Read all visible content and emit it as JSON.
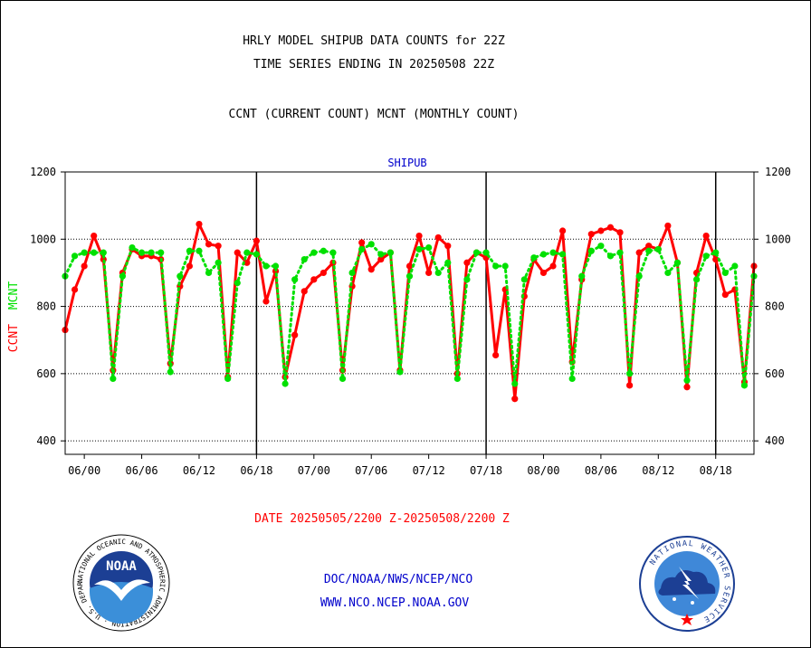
{
  "header": {
    "line1": "HRLY MODEL SHIPUB DATA COUNTS for 22Z",
    "line2": "TIME SERIES ENDING IN 20250508 22Z",
    "line3": "CCNT (CURRENT COUNT) MCNT (MONTHLY COUNT)"
  },
  "footer": {
    "date_range": "DATE 20250505/2200 Z-20250508/2200 Z",
    "org": "DOC/NOAA/NWS/NCEP/NCO",
    "url": "WWW.NCO.NCEP.NOAA.GOV"
  },
  "logos": {
    "noaa_text": "NOAA",
    "noaa_ring": "NATIONAL OCEANIC AND ATMOSPHERIC ADMINISTRATION · U.S. DEPARTMENT OF COMMERCE ·",
    "nws_ring": "NATIONAL WEATHER SERVICE"
  },
  "colors": {
    "ccnt": "#ff0000",
    "mcnt": "#00e000",
    "title": "#0000cc"
  },
  "chart_data": {
    "type": "line",
    "title": "SHIPUB",
    "ylabel_left": [
      "CCNT",
      "MCNT"
    ],
    "ylim": [
      360,
      1200
    ],
    "yticks": [
      400,
      600,
      800,
      1000,
      1200
    ],
    "xlim": [
      0,
      72
    ],
    "x_tick_labels": [
      "06/00",
      "06/06",
      "06/12",
      "06/18",
      "07/00",
      "07/06",
      "07/12",
      "07/18",
      "08/00",
      "08/06",
      "08/12",
      "08/18"
    ],
    "x_ticks": [
      2,
      8,
      14,
      20,
      26,
      32,
      38,
      44,
      50,
      56,
      62,
      68
    ],
    "day_boundaries": [
      20,
      44,
      68
    ],
    "grid": true,
    "series": [
      {
        "name": "CCNT",
        "x": [
          0,
          1,
          2,
          3,
          4,
          5,
          6,
          7,
          8,
          9,
          10,
          11,
          12,
          13,
          14,
          15,
          16,
          17,
          18,
          19,
          20,
          21,
          22,
          23,
          24,
          25,
          26,
          27,
          28,
          29,
          30,
          31,
          32,
          33,
          34,
          35,
          36,
          37,
          38,
          39,
          40,
          41,
          42,
          43,
          44,
          45,
          46,
          47,
          48,
          49,
          50,
          51,
          52,
          53,
          54,
          55,
          56,
          57,
          58,
          59,
          60,
          61,
          62,
          63,
          64,
          65,
          66,
          67,
          68,
          69,
          70,
          71,
          72
        ],
        "values": [
          730,
          850,
          920,
          1010,
          940,
          610,
          900,
          970,
          950,
          950,
          940,
          630,
          860,
          920,
          1045,
          985,
          980,
          590,
          960,
          930,
          995,
          815,
          905,
          590,
          715,
          845,
          880,
          900,
          930,
          610,
          860,
          990,
          910,
          940,
          960,
          610,
          920,
          1010,
          900,
          1005,
          980,
          600,
          930,
          960,
          945,
          655,
          850,
          525,
          830,
          940,
          900,
          920,
          1025,
          635,
          880,
          1015,
          1025,
          1035,
          1020,
          565,
          960,
          980,
          970,
          1040,
          930,
          560,
          900,
          1010,
          940,
          835,
          850,
          575,
          920
        ]
      },
      {
        "name": "MCNT",
        "x": [
          0,
          1,
          2,
          3,
          4,
          5,
          6,
          7,
          8,
          9,
          10,
          11,
          12,
          13,
          14,
          15,
          16,
          17,
          18,
          19,
          20,
          21,
          22,
          23,
          24,
          25,
          26,
          27,
          28,
          29,
          30,
          31,
          32,
          33,
          34,
          35,
          36,
          37,
          38,
          39,
          40,
          41,
          42,
          43,
          44,
          45,
          46,
          47,
          48,
          49,
          50,
          51,
          52,
          53,
          54,
          55,
          56,
          57,
          58,
          59,
          60,
          61,
          62,
          63,
          64,
          65,
          66,
          67,
          68,
          69,
          70,
          71,
          72
        ],
        "values": [
          890,
          950,
          960,
          960,
          960,
          585,
          890,
          975,
          960,
          960,
          960,
          605,
          890,
          965,
          965,
          900,
          930,
          585,
          870,
          960,
          955,
          920,
          920,
          570,
          880,
          940,
          960,
          965,
          960,
          585,
          900,
          970,
          985,
          955,
          960,
          605,
          890,
          970,
          975,
          900,
          930,
          585,
          880,
          960,
          960,
          920,
          920,
          570,
          880,
          945,
          955,
          960,
          955,
          585,
          890,
          965,
          980,
          950,
          960,
          600,
          890,
          965,
          970,
          900,
          930,
          580,
          880,
          950,
          960,
          900,
          920,
          565,
          890
        ]
      }
    ]
  }
}
